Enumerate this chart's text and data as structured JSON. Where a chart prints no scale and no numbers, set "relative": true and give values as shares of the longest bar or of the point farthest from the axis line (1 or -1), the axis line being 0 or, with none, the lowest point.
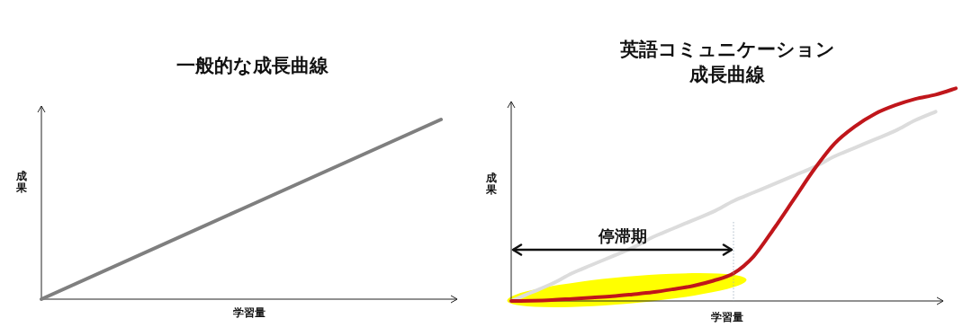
{
  "chart_data": [
    {
      "type": "line",
      "title": "一般的な成長曲線",
      "xlabel": "学習量",
      "ylabel": "成果",
      "relative": true,
      "categories": [
        null,
        null
      ],
      "series": [
        {
          "color": "#7f7f7f",
          "values": [
            0,
            1
          ]
        }
      ]
    },
    {
      "type": "line",
      "title": "英語コミュニケーション成長曲線",
      "xlabel": "学習量",
      "ylabel": "成果",
      "relative": true,
      "annotations": [
        "停滞期"
      ],
      "categories": [
        null,
        null,
        null,
        null,
        null,
        null,
        null,
        null,
        null,
        null,
        null,
        null,
        null,
        null,
        null,
        null,
        null,
        null,
        null,
        null,
        null,
        null,
        null
      ],
      "series": [
        {
          "color": "#dcdcdc",
          "values": [
            0,
            0.04,
            0.08,
            0.13,
            0.17,
            0.21,
            0.25,
            0.3,
            0.34,
            0.38,
            0.42,
            0.47,
            0.51,
            0.55,
            0.59,
            0.63,
            0.68,
            0.72,
            0.76,
            0.8,
            0.85,
            0.89,
            null
          ]
        },
        {
          "color": "#c0161b",
          "values": [
            0,
            0.001,
            0.004,
            0.01,
            0.016,
            0.022,
            0.031,
            0.041,
            0.055,
            0.071,
            0.095,
            0.13,
            0.21,
            0.34,
            0.48,
            0.62,
            0.74,
            0.82,
            0.88,
            0.92,
            0.95,
            0.97,
            1
          ]
        }
      ]
    }
  ]
}
